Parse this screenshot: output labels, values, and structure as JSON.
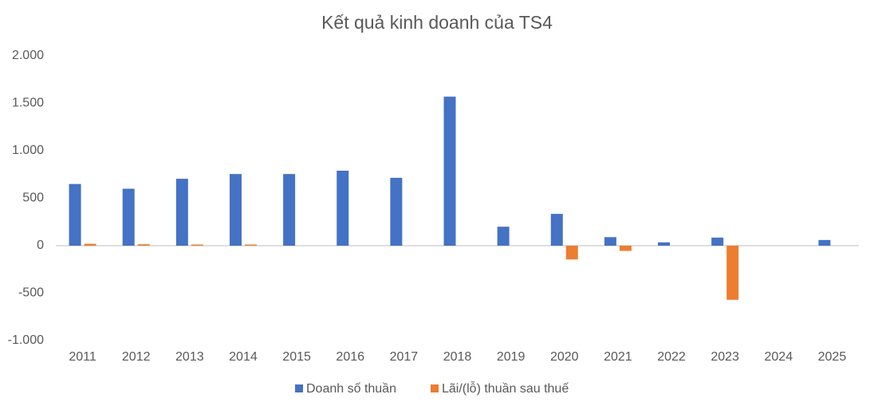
{
  "chart_data": {
    "type": "bar",
    "title": "Kết quả kinh doanh của TS4",
    "categories": [
      "2011",
      "2012",
      "2013",
      "2014",
      "2015",
      "2016",
      "2017",
      "2018",
      "2019",
      "2020",
      "2021",
      "2022",
      "2023",
      "2024",
      "2025"
    ],
    "series": [
      {
        "name": "Doanh số thuần",
        "color": "#4472c4",
        "values": [
          650,
          600,
          705,
          755,
          755,
          790,
          715,
          1570,
          200,
          335,
          90,
          35,
          85,
          null,
          60
        ]
      },
      {
        "name": "Lãi/(lỗ) thuần sau thuế",
        "color": "#ed7d31",
        "values": [
          20,
          15,
          12,
          12,
          null,
          null,
          null,
          null,
          null,
          -145,
          -55,
          null,
          -570,
          null,
          null
        ]
      }
    ],
    "ylim": [
      -1000,
      2000
    ],
    "yticks": [
      {
        "value": -1000,
        "label": "-1.000"
      },
      -500,
      0,
      500,
      {
        "value": 1000,
        "label": "1.000"
      },
      {
        "value": 1500,
        "label": "1.500"
      },
      {
        "value": 2000,
        "label": "2.000"
      }
    ],
    "grid": false,
    "legend": "bottom"
  }
}
